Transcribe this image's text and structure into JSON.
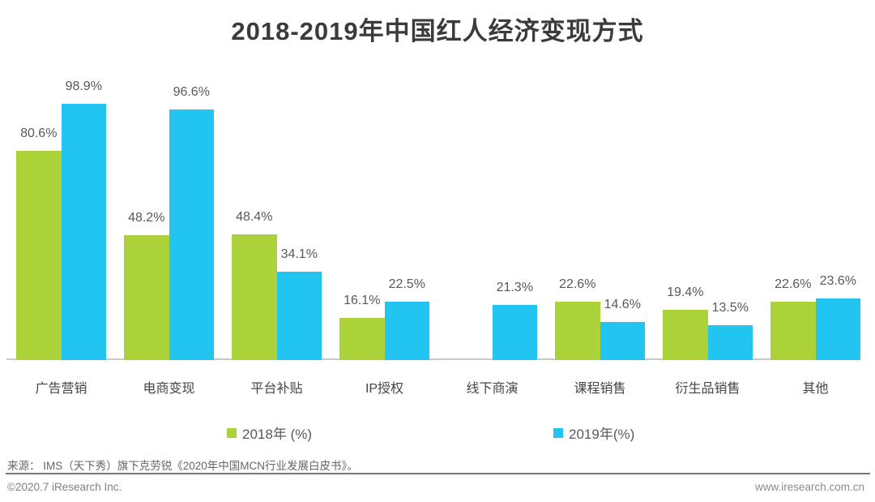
{
  "title": "2018-2019年中国红人经济变现方式",
  "chart_data": {
    "type": "bar",
    "title": "2018-2019年中国红人经济变现方式",
    "categories": [
      "广告营销",
      "电商变现",
      "平台补贴",
      "IP授权",
      "线下商演",
      "课程销售",
      "衍生品销售",
      "其他"
    ],
    "series": [
      {
        "key": "2018",
        "name": "2018年 (%)",
        "color": "#abd339",
        "values": [
          80.6,
          48.2,
          48.4,
          16.1,
          null,
          22.6,
          19.4,
          22.6
        ]
      },
      {
        "key": "2019",
        "name": "2019年(%)",
        "color": "#21c5f0",
        "values": [
          98.9,
          96.6,
          34.1,
          22.5,
          21.3,
          14.6,
          13.5,
          23.6
        ]
      }
    ],
    "value_suffix": "%",
    "ylim": [
      0,
      112
    ],
    "grid": false,
    "y_axis_visible": false,
    "data_labels": true,
    "legend_position": "bottom"
  },
  "source_note": "来源： IMS（天下秀）旗下克劳锐《2020年中国MCN行业发展白皮书》。",
  "footer": {
    "copyright": "©2020.7 iResearch Inc.",
    "website": "www.iresearch.com.cn"
  }
}
